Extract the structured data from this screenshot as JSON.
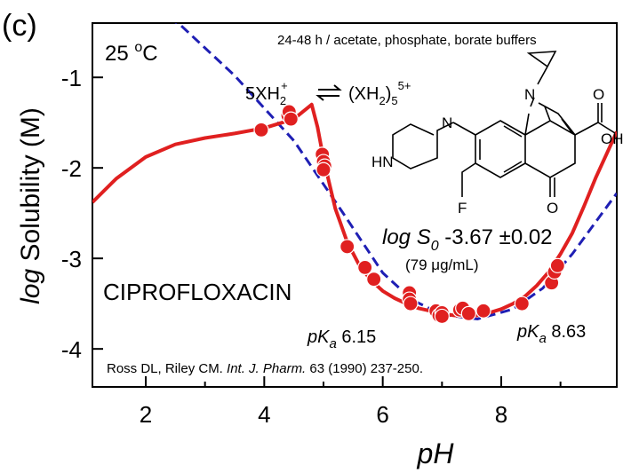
{
  "panel_label": "(c)",
  "chart_data": {
    "type": "scatter",
    "title": "",
    "xlabel": "pH",
    "ylabel": "log Solubility (M)",
    "xlim": [
      1.1,
      9.95
    ],
    "ylim": [
      -4.42,
      -0.4
    ],
    "x_ticks": [
      2,
      4,
      6,
      8
    ],
    "y_ticks": [
      -1,
      -2,
      -3,
      -4
    ],
    "x_tick_labels": [
      "2",
      "4",
      "6",
      "8"
    ],
    "y_tick_labels": [
      "-1",
      "-2",
      "-3",
      "-4"
    ],
    "grid": false,
    "colors": {
      "fit_line": "#e02020",
      "henderson_hasselbalch": "#1f1fb4",
      "points": "#e02020",
      "points_edge": "#ffffff"
    },
    "series": [
      {
        "kind": "points",
        "x": [
          3.95,
          4.4,
          4.42,
          4.45,
          4.98,
          5.0,
          5.02,
          5.0,
          5.4,
          5.7,
          5.85,
          6.45,
          6.45,
          6.47,
          6.9,
          6.95,
          7.0,
          7.0,
          7.3,
          7.35,
          7.45,
          7.7,
          8.35,
          8.85,
          8.9,
          8.95
        ],
        "y": [
          -1.58,
          -1.42,
          -1.38,
          -1.46,
          -1.85,
          -1.93,
          -1.98,
          -2.02,
          -2.87,
          -3.1,
          -3.23,
          -3.38,
          -3.45,
          -3.5,
          -3.58,
          -3.63,
          -3.6,
          -3.64,
          -3.57,
          -3.55,
          -3.61,
          -3.58,
          -3.5,
          -3.27,
          -3.15,
          -3.08
        ]
      },
      {
        "kind": "fit",
        "x": [
          1.1,
          1.5,
          2.0,
          2.5,
          3.0,
          3.5,
          4.0,
          4.5,
          4.8,
          4.9,
          5.0,
          5.2,
          5.4,
          5.6,
          5.8,
          6.0,
          6.2,
          6.4,
          6.6,
          6.8,
          7.0,
          7.2,
          7.4,
          7.6,
          7.8,
          8.0,
          8.2,
          8.4,
          8.6,
          8.8,
          9.0,
          9.2,
          9.4,
          9.6,
          9.95
        ],
        "y": [
          -2.38,
          -2.12,
          -1.88,
          -1.74,
          -1.67,
          -1.62,
          -1.56,
          -1.46,
          -1.3,
          -1.55,
          -1.9,
          -2.45,
          -2.82,
          -3.07,
          -3.24,
          -3.36,
          -3.44,
          -3.5,
          -3.55,
          -3.58,
          -3.61,
          -3.63,
          -3.64,
          -3.63,
          -3.6,
          -3.56,
          -3.5,
          -3.42,
          -3.3,
          -3.15,
          -2.95,
          -2.72,
          -2.42,
          -2.1,
          -1.6
        ]
      },
      {
        "kind": "hh_line",
        "x": [
          1.1,
          2.6,
          3.5,
          4.5,
          5.3,
          6.0,
          6.5,
          7.0,
          7.6,
          8.2,
          8.7,
          9.2,
          9.95
        ],
        "y": [
          0.2,
          -0.43,
          -0.98,
          -1.7,
          -2.47,
          -3.16,
          -3.46,
          -3.62,
          -3.67,
          -3.56,
          -3.33,
          -2.95,
          -2.28
        ]
      }
    ],
    "annotations": {
      "temperature": {
        "value": "25 ",
        "super": "o",
        "unit": "C"
      },
      "conditions": "24-48 h / acetate, phosphate, borate buffers",
      "equilibrium": {
        "left": "5XH",
        "left_sub": "2",
        "left_sup": "+",
        "right": "(XH",
        "right_sub": "2",
        "right_close": ")",
        "right_sub2": "5",
        "right_sup": "5+"
      },
      "compound": "CIPROFLOXACIN",
      "logS0": {
        "prefix": "log S",
        "sub": "0",
        "value": " -3.67 ±0.02"
      },
      "logS0_ug": {
        "value": "(79 ",
        "mu": "μ",
        "unit": "g/mL)"
      },
      "pka1": {
        "p": "pK",
        "sub": "a",
        "value": " 6.15"
      },
      "pka2": {
        "p": "pK",
        "sub": "a",
        "value": " 8.63"
      },
      "reference": {
        "authors": "Ross DL, Riley CM. ",
        "journal": "Int. J. Pharm.",
        "details": " 63 (1990) 237-250."
      }
    },
    "structure": {
      "labels": [
        "N",
        "O",
        "OH",
        "O",
        "HN",
        "N",
        "F"
      ]
    }
  }
}
